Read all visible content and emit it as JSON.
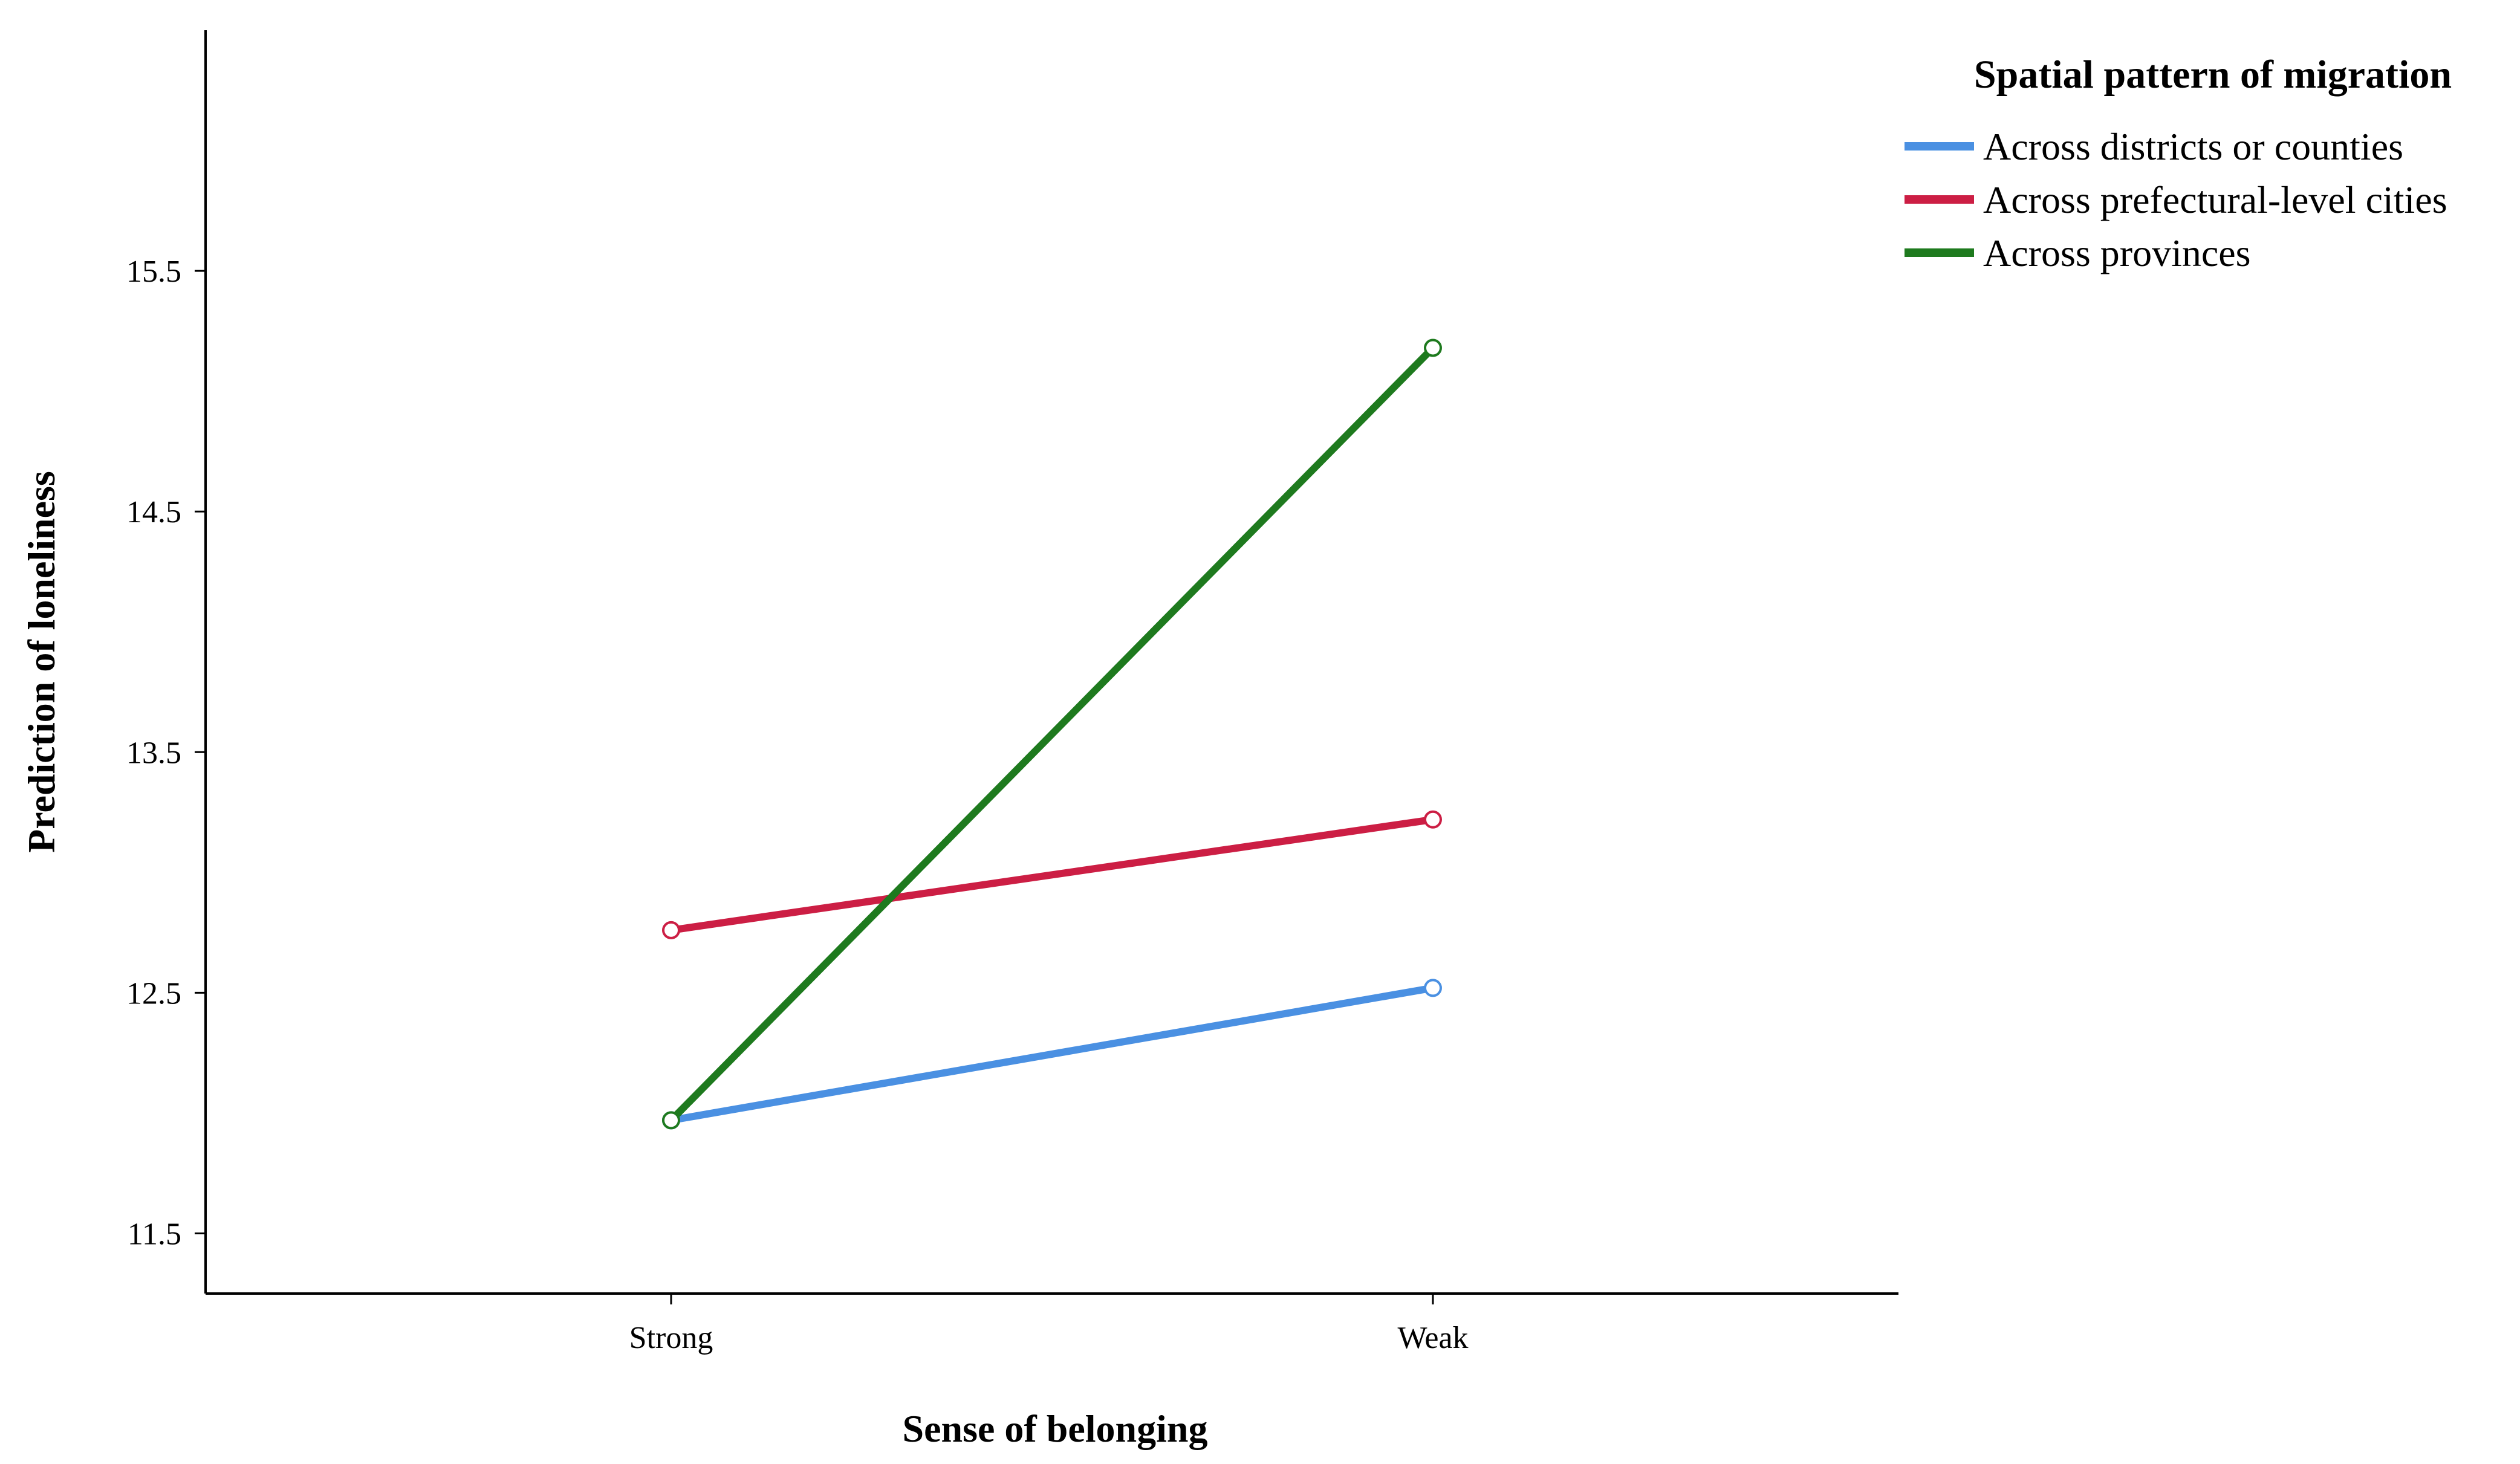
{
  "chart_data": {
    "type": "line",
    "title": "",
    "xlabel": "Sense of belonging",
    "ylabel": "Prediction of loneliness",
    "categories": [
      "Strong",
      "Weak"
    ],
    "ylim": [
      11.25,
      16.5
    ],
    "yticks": [
      11.5,
      12.5,
      13.5,
      14.5,
      15.5
    ],
    "ytick_labels": [
      "11.5",
      "12.5",
      "13.5",
      "14.5",
      "15.5"
    ],
    "grid": false,
    "legend": {
      "title": "Spatial pattern of migration",
      "position": "top-right"
    },
    "series": [
      {
        "name": "Across districts or counties",
        "color": "#4a90e2",
        "values": [
          11.97,
          12.52
        ]
      },
      {
        "name": "Across prefectural-level cities",
        "color": "#cc1e44",
        "values": [
          12.76,
          13.22
        ]
      },
      {
        "name": "Across provinces",
        "color": "#1e7a1e",
        "values": [
          11.97,
          15.18
        ]
      }
    ]
  }
}
